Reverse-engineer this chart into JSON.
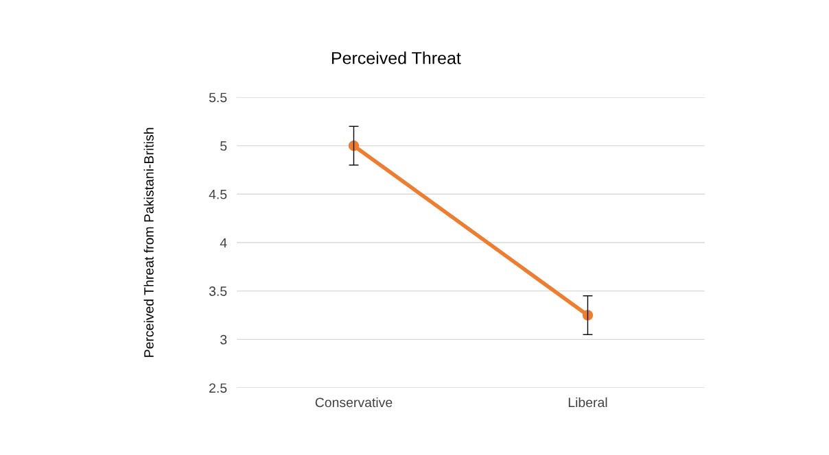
{
  "chart_data": {
    "type": "line",
    "title": "Perceived Threat",
    "ylabel": "Perceived Threat from Pakistani-British",
    "categories": [
      "Conservative",
      "Liberal"
    ],
    "series": [
      {
        "color": "#ed7d31",
        "values": [
          5.0,
          3.25
        ],
        "errors": [
          0.2,
          0.2
        ]
      }
    ],
    "ylim": [
      2.5,
      5.5
    ],
    "yticks": [
      2.5,
      3,
      3.5,
      4,
      4.5,
      5,
      5.5
    ],
    "grid": "y",
    "marker": "circle",
    "line_style": "solid"
  }
}
